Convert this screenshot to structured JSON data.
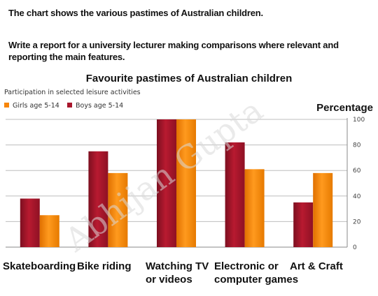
{
  "task": {
    "line1": "The chart shows the various pastimes of Australian children.",
    "line2": "Write a report for a university lecturer making comparisons where relevant and reporting the main features."
  },
  "watermark": {
    "text": "Abhijan Gupta"
  },
  "chart_data": {
    "type": "bar",
    "title": "Favourite pastimes of Australian children",
    "subtitle": "Participation in selected leisure activities",
    "ylabel": "Percentage",
    "xlabel": "",
    "ylim": [
      0,
      100
    ],
    "yticks": [
      0,
      20,
      40,
      60,
      80,
      100
    ],
    "grid": true,
    "legend_position": "top-left",
    "categories": [
      "Skateboarding",
      "Bike riding",
      "Watching TV or videos",
      "Electronic or computer games",
      "Art & Craft"
    ],
    "category_lines": [
      [
        "Skateboarding"
      ],
      [
        "Bike riding"
      ],
      [
        "Watching TV",
        "or videos"
      ],
      [
        "Electronic or",
        "computer games"
      ],
      [
        "Art & Craft"
      ]
    ],
    "series": [
      {
        "name": "Boys age 5-14",
        "color": "#a8162c",
        "values": [
          38,
          75,
          100,
          82,
          35
        ]
      },
      {
        "name": "Girls age 5-14",
        "color": "#f7860a",
        "values": [
          25,
          58,
          100,
          61,
          58
        ]
      }
    ],
    "legend": [
      {
        "name": "Girls age 5-14",
        "color": "#f7860a"
      },
      {
        "name": "Boys age 5-14",
        "color": "#a8162c"
      }
    ]
  }
}
